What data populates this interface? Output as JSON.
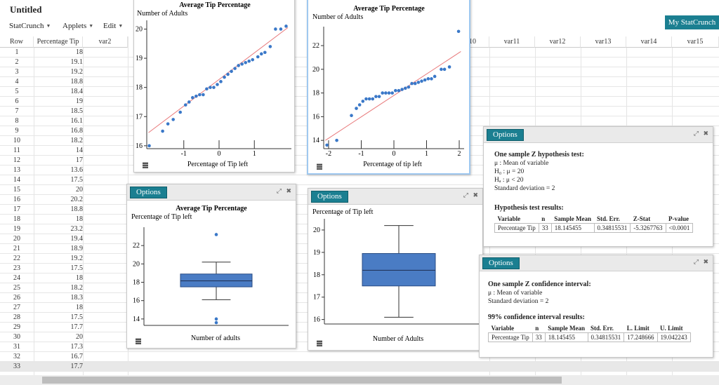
{
  "app": {
    "title": "Untitled",
    "account_button": "My StatCrunch"
  },
  "menu": [
    {
      "label": "StatCrunch"
    },
    {
      "label": "Applets"
    },
    {
      "label": "Edit"
    }
  ],
  "grid": {
    "row_header": "Row",
    "col1_header": "Percentage Tip",
    "columns": [
      "var2",
      "var10",
      "var11",
      "var12",
      "var13",
      "var14",
      "var15"
    ],
    "rows": [
      {
        "row": "1",
        "val": "18"
      },
      {
        "row": "2",
        "val": "19.1"
      },
      {
        "row": "3",
        "val": "19.2"
      },
      {
        "row": "4",
        "val": "18.8"
      },
      {
        "row": "5",
        "val": "18.4"
      },
      {
        "row": "6",
        "val": "19"
      },
      {
        "row": "7",
        "val": "18.5"
      },
      {
        "row": "8",
        "val": "16.1"
      },
      {
        "row": "9",
        "val": "16.8"
      },
      {
        "row": "10",
        "val": "18.2"
      },
      {
        "row": "11",
        "val": "14"
      },
      {
        "row": "12",
        "val": "17"
      },
      {
        "row": "13",
        "val": "13.6"
      },
      {
        "row": "14",
        "val": "17.5"
      },
      {
        "row": "15",
        "val": "20"
      },
      {
        "row": "16",
        "val": "20.2"
      },
      {
        "row": "17",
        "val": "18.8"
      },
      {
        "row": "18",
        "val": "18"
      },
      {
        "row": "19",
        "val": "23.2"
      },
      {
        "row": "20",
        "val": "19.4"
      },
      {
        "row": "21",
        "val": "18.9"
      },
      {
        "row": "22",
        "val": "19.2"
      },
      {
        "row": "23",
        "val": "17.5"
      },
      {
        "row": "24",
        "val": "18"
      },
      {
        "row": "25",
        "val": "18.2"
      },
      {
        "row": "26",
        "val": "18.3"
      },
      {
        "row": "27",
        "val": "18"
      },
      {
        "row": "28",
        "val": "17.5"
      },
      {
        "row": "29",
        "val": "17.7"
      },
      {
        "row": "30",
        "val": "20"
      },
      {
        "row": "31",
        "val": "17.3"
      },
      {
        "row": "32",
        "val": "16.7"
      },
      {
        "row": "33",
        "val": "17.7"
      }
    ]
  },
  "windows": {
    "qq1": {
      "title": "Average Tip Percentage",
      "ylabel": "Number of Adults",
      "xlabel": "Percentage of Tip left"
    },
    "qq2": {
      "title": "Average Tip Percentage",
      "ylabel": "Number of Adults",
      "xlabel": "Percentage of tip left"
    },
    "box1": {
      "options": "Options",
      "title": "Average Tip Percentage",
      "ylabel": "Percentage of Tip left",
      "xlabel": "Number of adults"
    },
    "box2": {
      "options": "Options",
      "ylabel": "Percentage of Tip left",
      "xlabel": "Number of Adults"
    },
    "ztest": {
      "options": "Options",
      "heading": "One sample Z hypothesis test:",
      "mu_line": "μ : Mean of variable",
      "h0": "H₀ : μ = 20",
      "ha": "Hₐ : μ < 20",
      "sd": "Standard deviation = 2",
      "results_heading": "Hypothesis test results:",
      "headers": [
        "Variable",
        "n",
        "Sample Mean",
        "Std. Err.",
        "Z-Stat",
        "P-value"
      ],
      "row": [
        "Percentage Tip",
        "33",
        "18.145455",
        "0.34815531",
        "-5.3267763",
        "<0.0001"
      ]
    },
    "zint": {
      "options": "Options",
      "heading": "One sample Z confidence interval:",
      "mu_line": "μ : Mean of variable",
      "sd": "Standard deviation = 2",
      "results_heading": "99% confidence interval results:",
      "headers": [
        "Variable",
        "n",
        "Sample Mean",
        "Std. Err.",
        "L. Limit",
        "U. Limit"
      ],
      "row": [
        "Percentage Tip",
        "33",
        "18.145455",
        "0.34815531",
        "17.248666",
        "19.042243"
      ]
    }
  },
  "chart_data": [
    {
      "type": "scatter",
      "title": "Average Tip Percentage",
      "xlabel": "Percentage of Tip left",
      "ylabel": "Number of Adults",
      "x_ticks": [
        "-1",
        "0",
        "1"
      ],
      "y_ticks": [
        "16",
        "17",
        "18",
        "19",
        "20"
      ],
      "xlim": [
        -2.05,
        2.05
      ],
      "ylim": [
        15.9,
        20.3
      ],
      "line": [
        [
          -2.0,
          16.45
        ],
        [
          1.95,
          20.05
        ]
      ],
      "points": [
        [
          -1.98,
          16.0
        ],
        [
          -1.6,
          16.5
        ],
        [
          -1.45,
          16.75
        ],
        [
          -1.3,
          16.9
        ],
        [
          -1.1,
          17.15
        ],
        [
          -0.95,
          17.4
        ],
        [
          -0.85,
          17.5
        ],
        [
          -0.75,
          17.65
        ],
        [
          -0.65,
          17.7
        ],
        [
          -0.55,
          17.75
        ],
        [
          -0.45,
          17.75
        ],
        [
          -0.35,
          17.95
        ],
        [
          -0.25,
          18.0
        ],
        [
          -0.15,
          18.0
        ],
        [
          -0.05,
          18.1
        ],
        [
          0.05,
          18.2
        ],
        [
          0.15,
          18.35
        ],
        [
          0.25,
          18.45
        ],
        [
          0.35,
          18.55
        ],
        [
          0.45,
          18.65
        ],
        [
          0.55,
          18.75
        ],
        [
          0.65,
          18.8
        ],
        [
          0.75,
          18.85
        ],
        [
          0.85,
          18.9
        ],
        [
          0.95,
          18.95
        ],
        [
          1.1,
          19.05
        ],
        [
          1.2,
          19.15
        ],
        [
          1.3,
          19.2
        ],
        [
          1.45,
          19.4
        ],
        [
          1.6,
          20.0
        ],
        [
          1.75,
          20.0
        ],
        [
          1.9,
          20.1
        ]
      ]
    },
    {
      "type": "scatter",
      "title": "Average Tip Percentage",
      "xlabel": "Percentage of tip left",
      "ylabel": "Number of Adults",
      "x_ticks": [
        "-2",
        "-1",
        "0",
        "1",
        "2"
      ],
      "y_ticks": [
        "14",
        "16",
        "18",
        "20",
        "22"
      ],
      "xlim": [
        -2.15,
        2.15
      ],
      "ylim": [
        13.3,
        23.6
      ],
      "line": [
        [
          -2.1,
          14.0
        ],
        [
          2.05,
          21.5
        ]
      ],
      "points": [
        [
          -2.05,
          13.6
        ],
        [
          -1.75,
          14.0
        ],
        [
          -1.3,
          16.1
        ],
        [
          -1.15,
          16.7
        ],
        [
          -1.05,
          17.0
        ],
        [
          -0.95,
          17.3
        ],
        [
          -0.85,
          17.5
        ],
        [
          -0.75,
          17.5
        ],
        [
          -0.65,
          17.5
        ],
        [
          -0.55,
          17.7
        ],
        [
          -0.45,
          17.7
        ],
        [
          -0.35,
          18.0
        ],
        [
          -0.25,
          18.0
        ],
        [
          -0.15,
          18.0
        ],
        [
          -0.05,
          18.0
        ],
        [
          0.05,
          18.2
        ],
        [
          0.15,
          18.2
        ],
        [
          0.25,
          18.3
        ],
        [
          0.35,
          18.4
        ],
        [
          0.45,
          18.5
        ],
        [
          0.55,
          18.8
        ],
        [
          0.65,
          18.8
        ],
        [
          0.75,
          18.9
        ],
        [
          0.85,
          19.0
        ],
        [
          0.95,
          19.1
        ],
        [
          1.05,
          19.2
        ],
        [
          1.15,
          19.2
        ],
        [
          1.25,
          19.4
        ],
        [
          1.45,
          20.0
        ],
        [
          1.55,
          20.0
        ],
        [
          1.7,
          20.2
        ],
        [
          1.98,
          23.2
        ]
      ]
    },
    {
      "type": "box",
      "title": "Average Tip Percentage",
      "ylabel": "Percentage of Tip left",
      "xlabel": "Number of adults",
      "y_ticks": [
        "14",
        "16",
        "18",
        "20",
        "22"
      ],
      "ylim": [
        13.3,
        24.0
      ],
      "min": 16.1,
      "q1": 17.5,
      "median": 18.15,
      "q3": 18.9,
      "max": 20.2,
      "outliers": [
        23.2,
        14.0,
        13.6
      ]
    },
    {
      "type": "box",
      "title": "",
      "ylabel": "Percentage of Tip left",
      "xlabel": "Number of Adults",
      "y_ticks": [
        "16",
        "17",
        "18",
        "19",
        "20"
      ],
      "ylim": [
        15.8,
        20.5
      ],
      "min": 16.1,
      "q1": 17.5,
      "median": 18.2,
      "q3": 18.95,
      "max": 20.2,
      "outliers": []
    }
  ]
}
